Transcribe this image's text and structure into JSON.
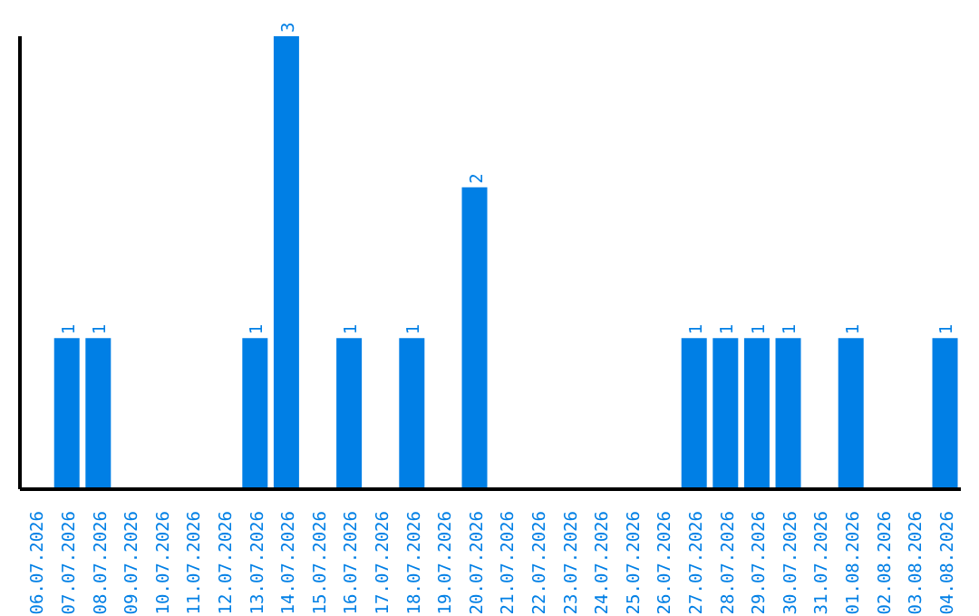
{
  "chart_data": {
    "type": "bar",
    "categories": [
      "06.07.2026",
      "07.07.2026",
      "08.07.2026",
      "09.07.2026",
      "10.07.2026",
      "11.07.2026",
      "12.07.2026",
      "13.07.2026",
      "14.07.2026",
      "15.07.2026",
      "16.07.2026",
      "17.07.2026",
      "18.07.2026",
      "19.07.2026",
      "20.07.2026",
      "21.07.2026",
      "22.07.2026",
      "23.07.2026",
      "24.07.2026",
      "25.07.2026",
      "26.07.2026",
      "27.07.2026",
      "28.07.2026",
      "29.07.2026",
      "30.07.2026",
      "31.07.2026",
      "01.08.2026",
      "02.08.2026",
      "03.08.2026",
      "04.08.2026"
    ],
    "values": [
      0,
      1,
      1,
      0,
      0,
      0,
      0,
      1,
      3,
      0,
      1,
      0,
      1,
      0,
      2,
      0,
      0,
      0,
      0,
      0,
      0,
      1,
      1,
      1,
      1,
      0,
      1,
      0,
      0,
      1
    ],
    "value_labels": [
      null,
      "1",
      "1",
      null,
      null,
      null,
      null,
      "1",
      "3",
      null,
      "1",
      null,
      "1",
      null,
      "2",
      null,
      null,
      null,
      null,
      null,
      null,
      "1",
      "1",
      "1",
      "1",
      null,
      "1",
      null,
      null,
      "1"
    ],
    "color": "#007fe5",
    "grid": false,
    "legend": false
  }
}
